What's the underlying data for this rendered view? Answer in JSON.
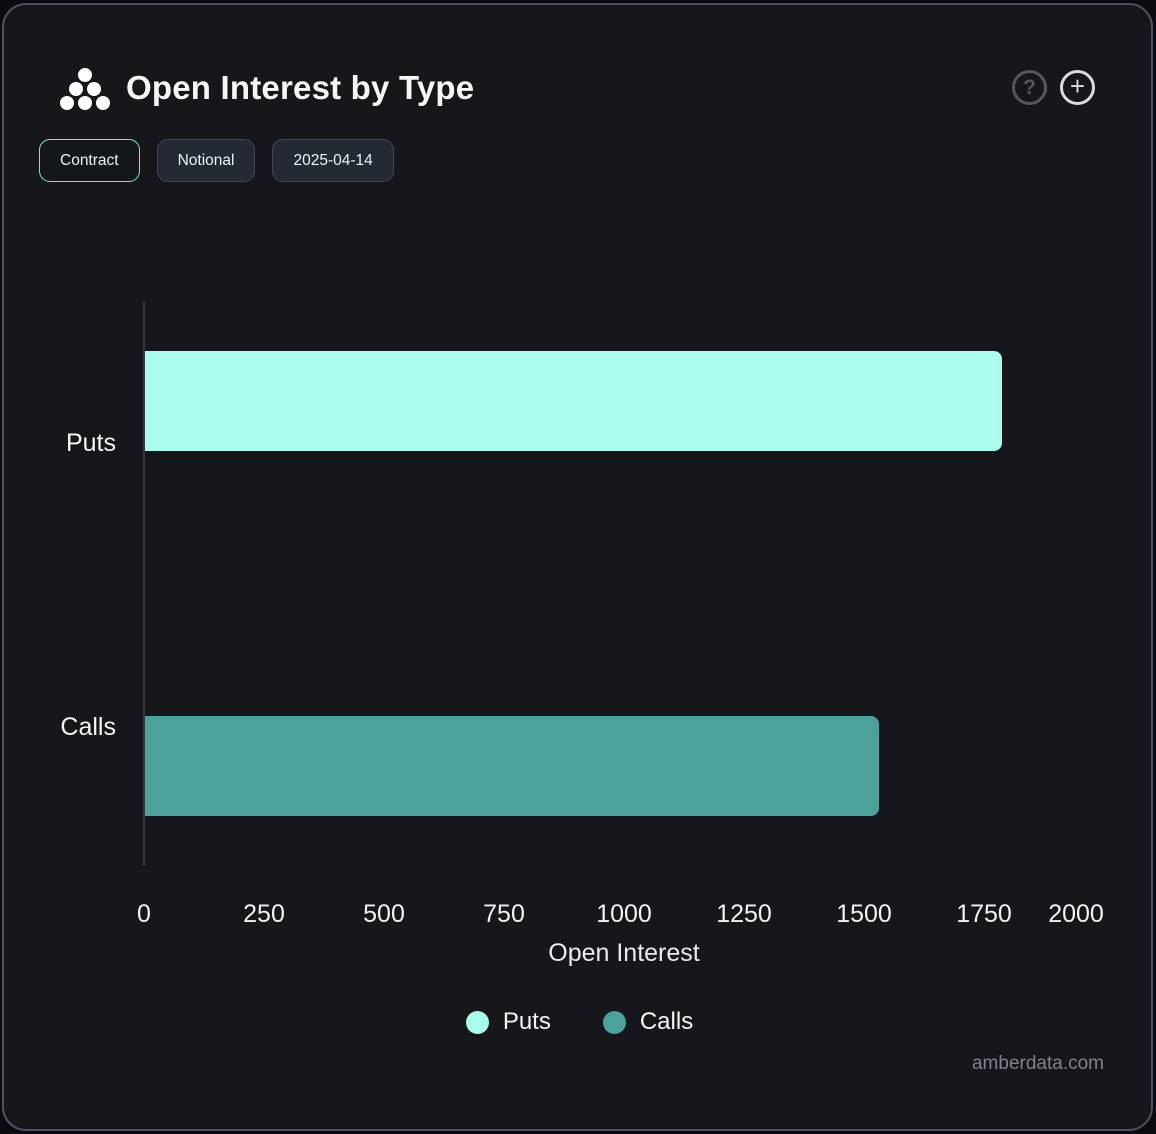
{
  "header": {
    "title": "Open Interest by Type",
    "help_label": "?",
    "add_label": "+"
  },
  "toolbar": {
    "buttons": [
      {
        "label": "Contract",
        "active": true
      },
      {
        "label": "Notional",
        "active": false
      },
      {
        "label": "2025-04-14",
        "active": false
      }
    ]
  },
  "chart_data": {
    "type": "bar",
    "orientation": "horizontal",
    "title": "Open Interest by Type",
    "categories": [
      "Puts",
      "Calls"
    ],
    "values": [
      1785,
      1530
    ],
    "colors": [
      "#a9fbec",
      "#4aa29b"
    ],
    "xlabel": "Open Interest",
    "ylabel": "",
    "xlim": [
      0,
      2000
    ],
    "xticks": [
      0,
      250,
      500,
      750,
      1000,
      1250,
      1500,
      1750,
      2000
    ],
    "grid": false,
    "legend_position": "bottom",
    "legend": [
      {
        "label": "Puts",
        "color": "#a9fbec"
      },
      {
        "label": "Calls",
        "color": "#4aa29b"
      }
    ]
  },
  "footer": {
    "watermark": "amberdata.com"
  },
  "colors": {
    "card_background": "#16171b",
    "card_border": "#4a5263",
    "accent_teal": "#72eada",
    "puts": "#a9fbec",
    "calls": "#4aa29b"
  }
}
